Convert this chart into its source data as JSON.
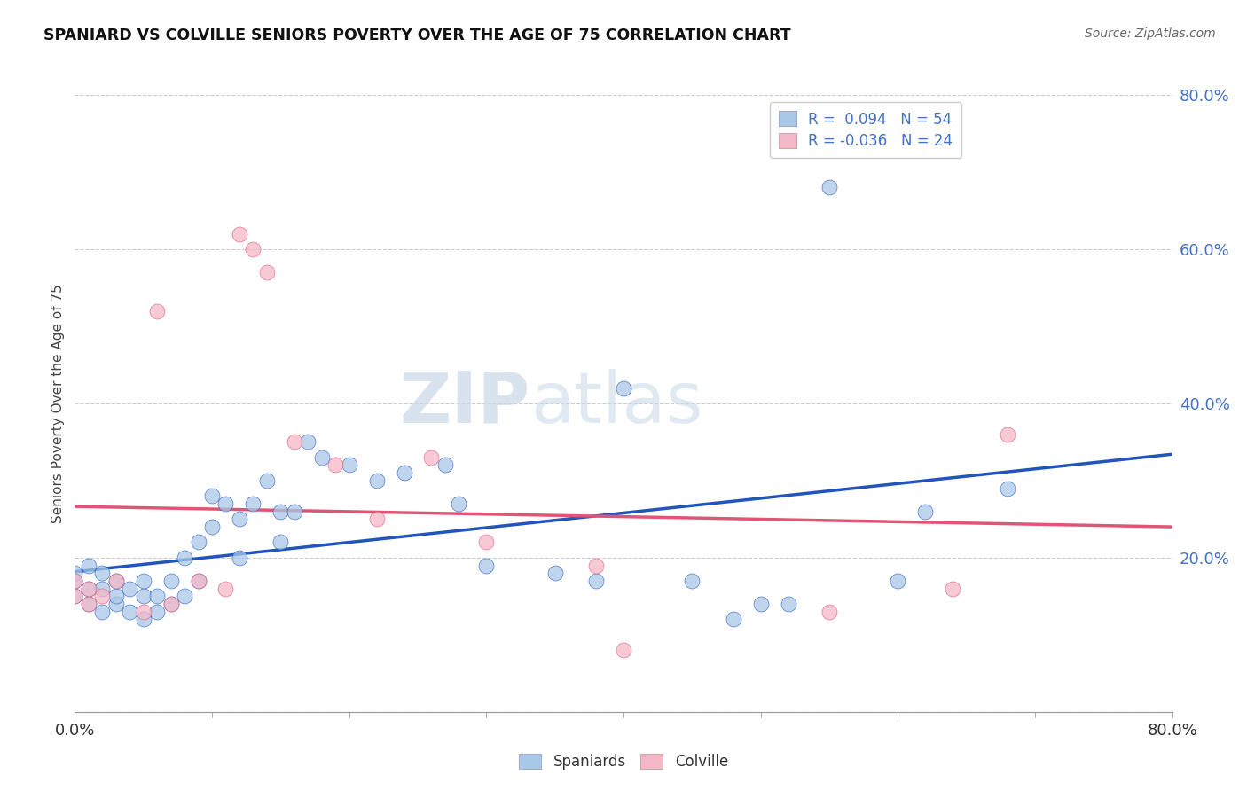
{
  "title": "SPANIARD VS COLVILLE SENIORS POVERTY OVER THE AGE OF 75 CORRELATION CHART",
  "source": "Source: ZipAtlas.com",
  "ylabel": "Seniors Poverty Over the Age of 75",
  "xlim": [
    0,
    0.8
  ],
  "ylim": [
    0,
    0.8
  ],
  "r_spaniards": 0.094,
  "n_spaniards": 54,
  "r_colville": -0.036,
  "n_colville": 24,
  "color_spaniards": "#a8c8e8",
  "color_colville": "#f4b8c8",
  "line_color_spaniards": "#2255bb",
  "line_color_colville": "#e05575",
  "watermark_zip": "ZIP",
  "watermark_atlas": "atlas",
  "background_color": "#ffffff",
  "grid_color": "#cccccc",
  "spaniards_x": [
    0.0,
    0.0,
    0.0,
    0.01,
    0.01,
    0.01,
    0.02,
    0.02,
    0.02,
    0.03,
    0.03,
    0.03,
    0.04,
    0.04,
    0.05,
    0.05,
    0.05,
    0.06,
    0.06,
    0.07,
    0.07,
    0.08,
    0.08,
    0.09,
    0.09,
    0.1,
    0.1,
    0.11,
    0.12,
    0.12,
    0.13,
    0.14,
    0.15,
    0.15,
    0.16,
    0.17,
    0.18,
    0.2,
    0.22,
    0.24,
    0.27,
    0.28,
    0.3,
    0.35,
    0.38,
    0.4,
    0.45,
    0.48,
    0.5,
    0.52,
    0.55,
    0.6,
    0.62,
    0.68
  ],
  "spaniards_y": [
    0.15,
    0.17,
    0.18,
    0.14,
    0.16,
    0.19,
    0.13,
    0.16,
    0.18,
    0.14,
    0.15,
    0.17,
    0.13,
    0.16,
    0.12,
    0.15,
    0.17,
    0.13,
    0.15,
    0.14,
    0.17,
    0.15,
    0.2,
    0.17,
    0.22,
    0.24,
    0.28,
    0.27,
    0.2,
    0.25,
    0.27,
    0.3,
    0.22,
    0.26,
    0.26,
    0.35,
    0.33,
    0.32,
    0.3,
    0.31,
    0.32,
    0.27,
    0.19,
    0.18,
    0.17,
    0.42,
    0.17,
    0.12,
    0.14,
    0.14,
    0.68,
    0.17,
    0.26,
    0.29
  ],
  "colville_x": [
    0.0,
    0.0,
    0.01,
    0.01,
    0.02,
    0.03,
    0.05,
    0.06,
    0.07,
    0.09,
    0.11,
    0.12,
    0.13,
    0.14,
    0.16,
    0.19,
    0.22,
    0.26,
    0.3,
    0.38,
    0.4,
    0.55,
    0.64,
    0.68
  ],
  "colville_y": [
    0.15,
    0.17,
    0.14,
    0.16,
    0.15,
    0.17,
    0.13,
    0.52,
    0.14,
    0.17,
    0.16,
    0.62,
    0.6,
    0.57,
    0.35,
    0.32,
    0.25,
    0.33,
    0.22,
    0.19,
    0.08,
    0.13,
    0.16,
    0.36
  ]
}
